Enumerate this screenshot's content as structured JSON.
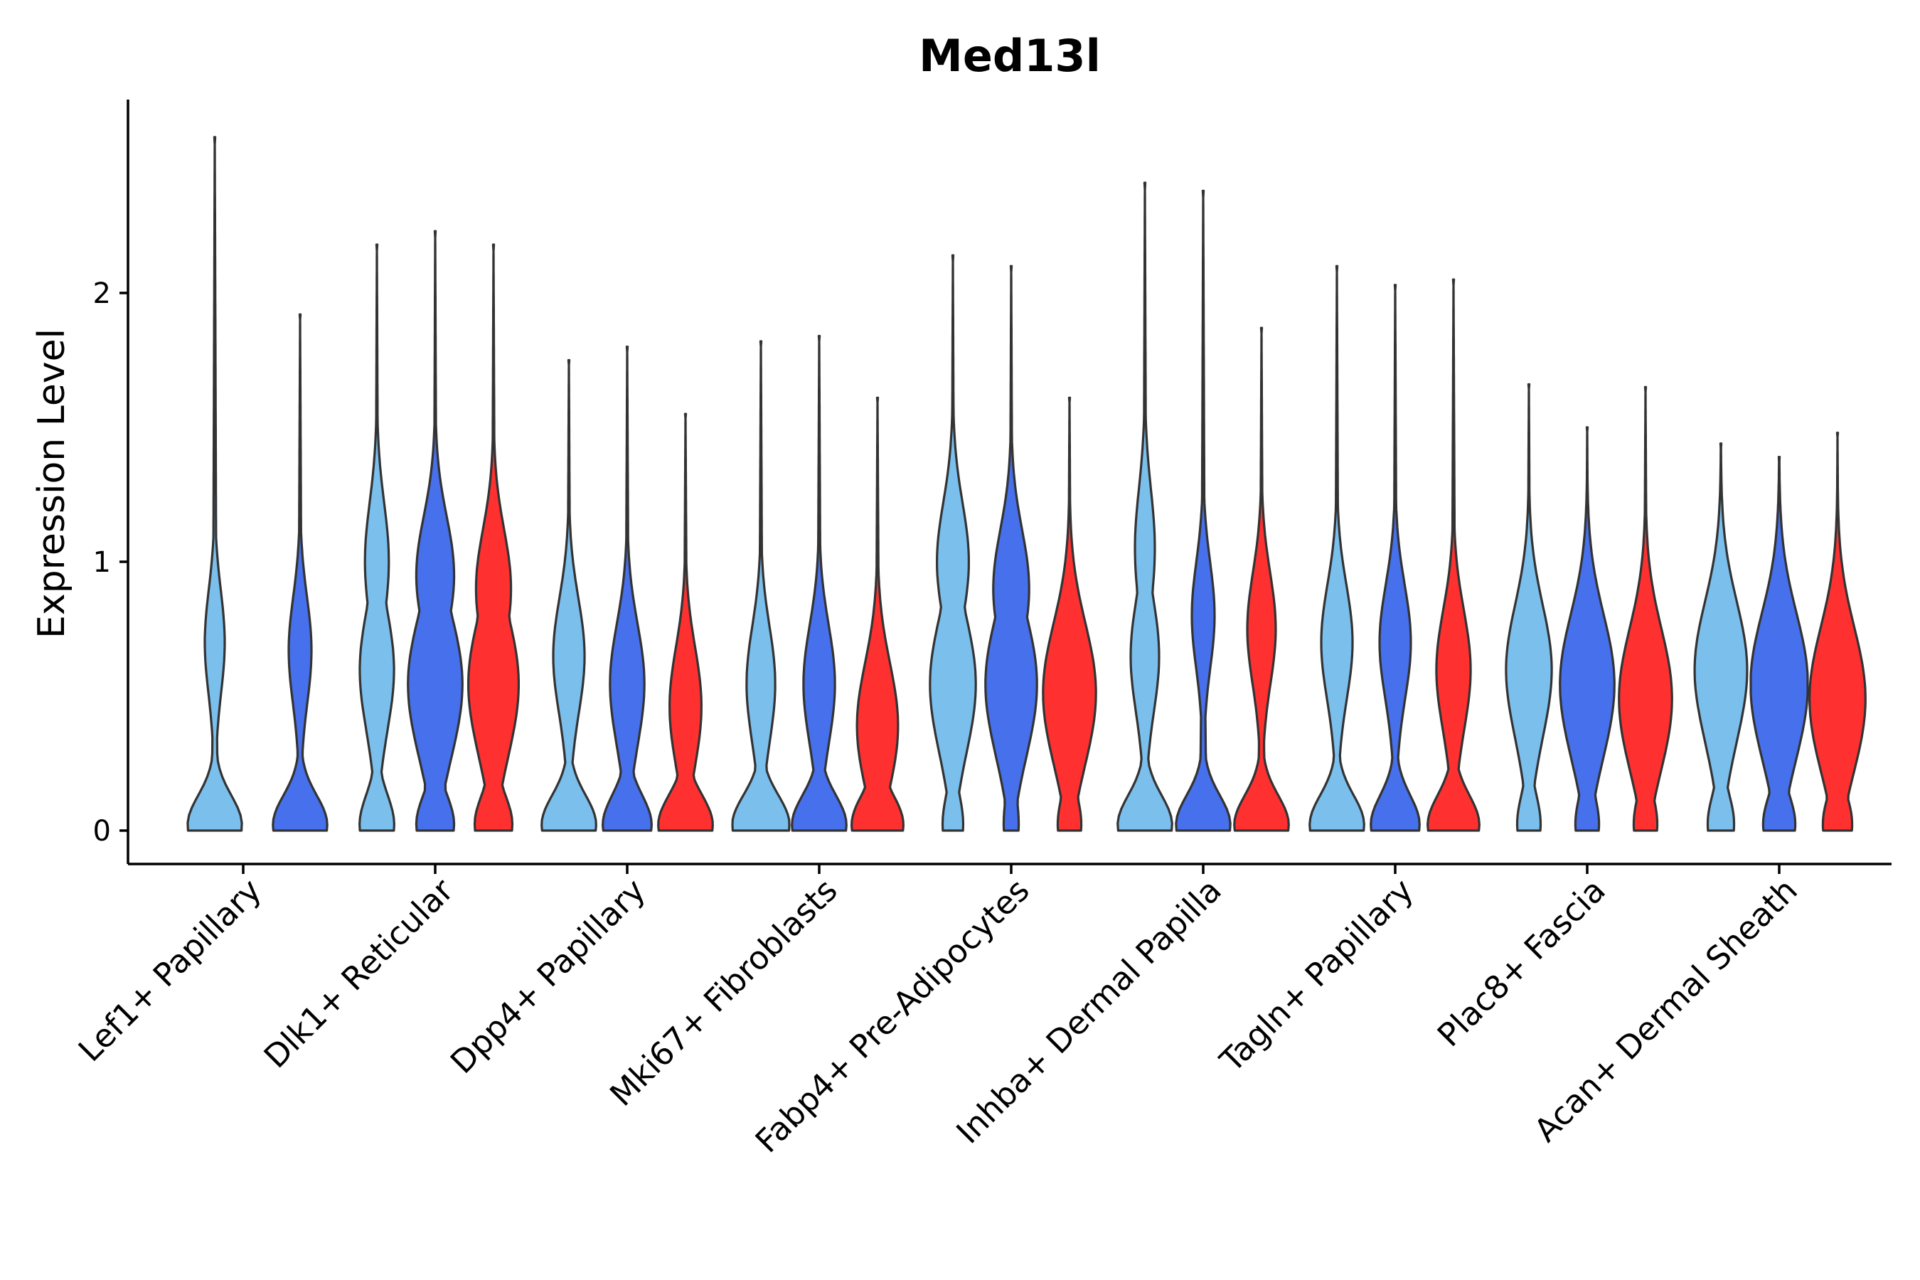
{
  "chart_data": {
    "type": "violin",
    "title": "Med13l",
    "xlabel": "",
    "ylabel": "Expression Level",
    "ylim": [
      -0.13,
      2.72
    ],
    "yticks": [
      0,
      1,
      2
    ],
    "ytick_labels": [
      "0",
      "1",
      "2"
    ],
    "grid": false,
    "legend": "none",
    "colors": {
      "group1": "#7bbfed",
      "group2": "#4670ec",
      "group3": "#ff3030",
      "outline": "#333333",
      "axis": "#000000"
    },
    "categories": [
      "Lef1+ Papillary",
      "Dlk1+ Reticular",
      "Dpp4+ Papillary",
      "Mki67+ Fibroblasts",
      "Fabp4+ Pre-Adipocytes",
      "Inhba+ Dermal Papilla",
      "Tagln+ Papillary",
      "Plac8+ Fascia",
      "Acan+ Dermal Sheath"
    ],
    "violins": [
      {
        "category": "Lef1+ Papillary",
        "group": 1,
        "max": 2.58,
        "zero": 0.95,
        "modes": [
          0.7
        ],
        "modeWidth": 0.35
      },
      {
        "category": "Lef1+ Papillary",
        "group": 2,
        "max": 1.92,
        "zero": 0.95,
        "modes": [
          0.67
        ],
        "modeWidth": 0.4
      },
      {
        "category": "Dlk1+ Reticular",
        "group": 1,
        "max": 2.18,
        "zero": 0.6,
        "modes": [
          0.6,
          1.0
        ],
        "modeWidth": 0.6
      },
      {
        "category": "Dlk1+ Reticular",
        "group": 2,
        "max": 2.23,
        "zero": 0.65,
        "modes": [
          0.55,
          0.95
        ],
        "modeWidth": 0.95
      },
      {
        "category": "Dlk1+ Reticular",
        "group": 3,
        "max": 2.18,
        "zero": 0.65,
        "modes": [
          0.55,
          0.9
        ],
        "modeWidth": 0.88
      },
      {
        "category": "Dpp4+ Papillary",
        "group": 1,
        "max": 1.75,
        "zero": 0.95,
        "modes": [
          0.65
        ],
        "modeWidth": 0.55
      },
      {
        "category": "Dpp4+ Papillary",
        "group": 2,
        "max": 1.8,
        "zero": 0.85,
        "modes": [
          0.55
        ],
        "modeWidth": 0.6
      },
      {
        "category": "Dpp4+ Papillary",
        "group": 3,
        "max": 1.55,
        "zero": 0.95,
        "modes": [
          0.47
        ],
        "modeWidth": 0.55
      },
      {
        "category": "Mki67+ Fibroblasts",
        "group": 1,
        "max": 1.82,
        "zero": 1.0,
        "modes": [
          0.55
        ],
        "modeWidth": 0.5
      },
      {
        "category": "Mki67+ Fibroblasts",
        "group": 2,
        "max": 1.84,
        "zero": 0.95,
        "modes": [
          0.55
        ],
        "modeWidth": 0.55
      },
      {
        "category": "Mki67+ Fibroblasts",
        "group": 3,
        "max": 1.61,
        "zero": 0.9,
        "modes": [
          0.4
        ],
        "modeWidth": 0.7
      },
      {
        "category": "Fabp4+ Pre-Adipocytes",
        "group": 1,
        "max": 2.14,
        "zero": 0.35,
        "modes": [
          0.55,
          1.0
        ],
        "modeWidth": 0.8
      },
      {
        "category": "Fabp4+ Pre-Adipocytes",
        "group": 2,
        "max": 2.1,
        "zero": 0.25,
        "modes": [
          0.55,
          0.9
        ],
        "modeWidth": 0.9
      },
      {
        "category": "Fabp4+ Pre-Adipocytes",
        "group": 3,
        "max": 1.61,
        "zero": 0.4,
        "modes": [
          0.52
        ],
        "modeWidth": 0.92
      },
      {
        "category": "Inhba+ Dermal Papilla",
        "group": 1,
        "max": 2.41,
        "zero": 0.95,
        "modes": [
          0.65,
          1.05
        ],
        "modeWidth": 0.5
      },
      {
        "category": "Inhba+ Dermal Papilla",
        "group": 2,
        "max": 2.38,
        "zero": 0.95,
        "modes": [
          0.8
        ],
        "modeWidth": 0.4
      },
      {
        "category": "Inhba+ Dermal Papilla",
        "group": 3,
        "max": 1.87,
        "zero": 0.95,
        "modes": [
          0.75
        ],
        "modeWidth": 0.5
      },
      {
        "category": "Tagln+ Papillary",
        "group": 1,
        "max": 2.1,
        "zero": 0.95,
        "modes": [
          0.7
        ],
        "modeWidth": 0.55
      },
      {
        "category": "Tagln+ Papillary",
        "group": 2,
        "max": 2.03,
        "zero": 0.85,
        "modes": [
          0.7
        ],
        "modeWidth": 0.55
      },
      {
        "category": "Tagln+ Papillary",
        "group": 3,
        "max": 2.05,
        "zero": 0.9,
        "modes": [
          0.6
        ],
        "modeWidth": 0.6
      },
      {
        "category": "Plac8+ Fascia",
        "group": 1,
        "max": 1.66,
        "zero": 0.4,
        "modes": [
          0.6
        ],
        "modeWidth": 0.8
      },
      {
        "category": "Plac8+ Fascia",
        "group": 2,
        "max": 1.5,
        "zero": 0.4,
        "modes": [
          0.55
        ],
        "modeWidth": 0.95
      },
      {
        "category": "Plac8+ Fascia",
        "group": 3,
        "max": 1.65,
        "zero": 0.4,
        "modes": [
          0.5
        ],
        "modeWidth": 0.92
      },
      {
        "category": "Acan+ Dermal Sheath",
        "group": 1,
        "max": 1.44,
        "zero": 0.45,
        "modes": [
          0.6
        ],
        "modeWidth": 0.92
      },
      {
        "category": "Acan+ Dermal Sheath",
        "group": 2,
        "max": 1.39,
        "zero": 0.55,
        "modes": [
          0.55
        ],
        "modeWidth": 1.0
      },
      {
        "category": "Acan+ Dermal Sheath",
        "group": 3,
        "max": 1.48,
        "zero": 0.5,
        "modes": [
          0.5
        ],
        "modeWidth": 0.97
      }
    ]
  }
}
